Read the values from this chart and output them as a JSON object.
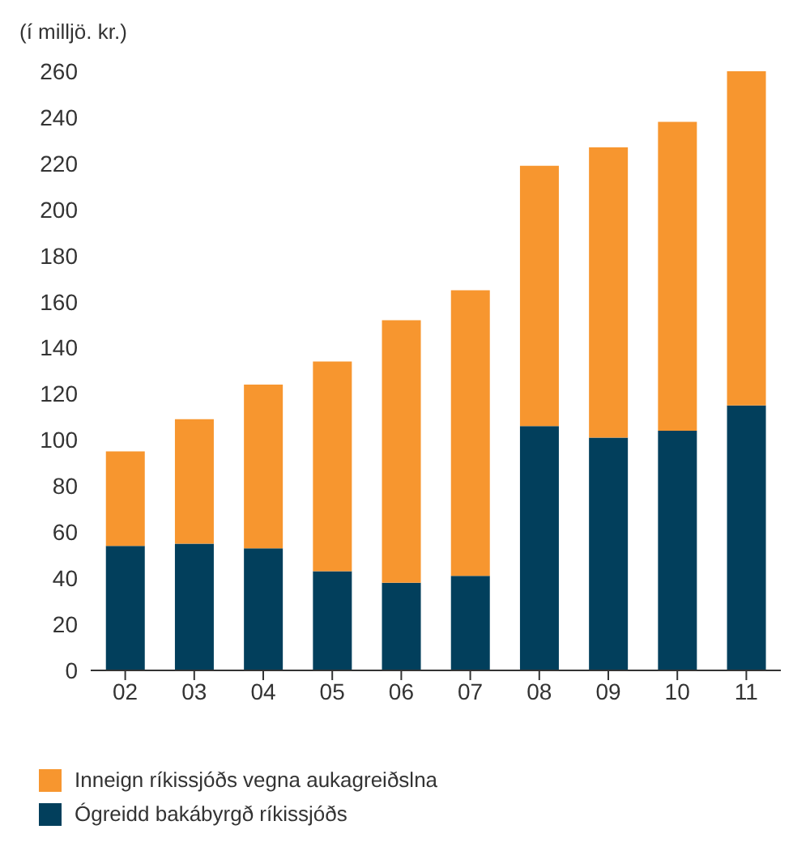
{
  "chart_data": {
    "type": "bar",
    "ylabel": "(í milljö. kr.)",
    "categories": [
      "02",
      "03",
      "04",
      "05",
      "06",
      "07",
      "08",
      "09",
      "10",
      "11"
    ],
    "stacked": true,
    "series": [
      {
        "name": "Ógreidd bakábyrgð ríkissjóðs",
        "color": "#023f5c",
        "values": [
          54,
          55,
          53,
          43,
          38,
          41,
          106,
          101,
          104,
          115
        ]
      },
      {
        "name": "Inneign ríkissjóðs vegna aukagreiðslna",
        "color": "#f7962f",
        "values": [
          41,
          54,
          71,
          91,
          114,
          124,
          113,
          126,
          134,
          145
        ]
      }
    ],
    "ylim": [
      0,
      260
    ],
    "yticks": [
      0,
      20,
      40,
      60,
      80,
      100,
      120,
      140,
      160,
      180,
      200,
      220,
      240,
      260
    ],
    "legend": "bottom"
  }
}
